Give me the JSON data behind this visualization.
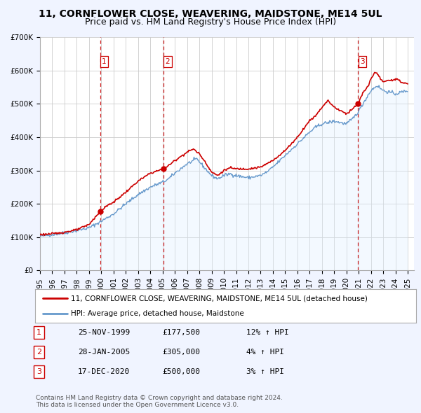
{
  "title": "11, CORNFLOWER CLOSE, WEAVERING, MAIDSTONE, ME14 5UL",
  "subtitle": "Price paid vs. HM Land Registry's House Price Index (HPI)",
  "ylim": [
    0,
    700000
  ],
  "yticks": [
    0,
    100000,
    200000,
    300000,
    400000,
    500000,
    600000,
    700000
  ],
  "ytick_labels": [
    "£0",
    "£100K",
    "£200K",
    "£300K",
    "£400K",
    "£500K",
    "£600K",
    "£700K"
  ],
  "xlim_start": 1995.0,
  "xlim_end": 2025.5,
  "xticks": [
    1995,
    1996,
    1997,
    1998,
    1999,
    2000,
    2001,
    2002,
    2003,
    2004,
    2005,
    2006,
    2007,
    2008,
    2009,
    2010,
    2011,
    2012,
    2013,
    2014,
    2015,
    2016,
    2017,
    2018,
    2019,
    2020,
    2021,
    2022,
    2023,
    2024,
    2025
  ],
  "legend_line1": "11, CORNFLOWER CLOSE, WEAVERING, MAIDSTONE, ME14 5UL (detached house)",
  "legend_line2": "HPI: Average price, detached house, Maidstone",
  "transactions": [
    {
      "num": 1,
      "date": "25-NOV-1999",
      "price": "£177,500",
      "hpi": "12% ↑ HPI",
      "year": 1999.9,
      "value": 177500
    },
    {
      "num": 2,
      "date": "28-JAN-2005",
      "price": "£305,000",
      "hpi": "4% ↑ HPI",
      "year": 2005.08,
      "value": 305000
    },
    {
      "num": 3,
      "date": "17-DEC-2020",
      "price": "£500,000",
      "hpi": "3% ↑ HPI",
      "year": 2020.96,
      "value": 500000
    }
  ],
  "footer_line1": "Contains HM Land Registry data © Crown copyright and database right 2024.",
  "footer_line2": "This data is licensed under the Open Government Licence v3.0.",
  "background_color": "#f0f4ff",
  "plot_bg_color": "#ffffff",
  "grid_color": "#cccccc",
  "red_line_color": "#cc0000",
  "blue_line_color": "#6699cc",
  "blue_fill_color": "#ddeeff",
  "vline_color": "#cc0000",
  "marker_color": "#cc0000",
  "title_fontsize": 10,
  "subtitle_fontsize": 9,
  "tick_fontsize": 7.5,
  "legend_fontsize": 7.5,
  "table_fontsize": 8,
  "footer_fontsize": 6.5
}
